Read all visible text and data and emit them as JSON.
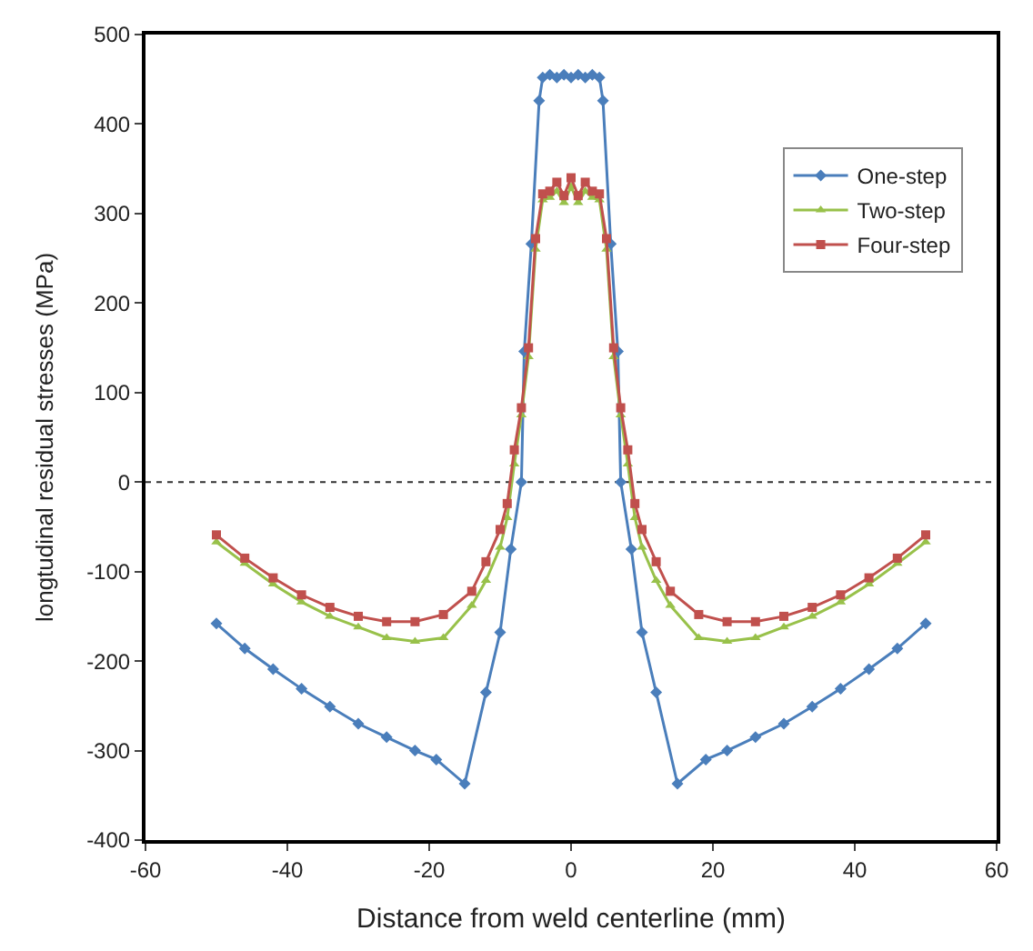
{
  "chart_data": {
    "type": "line",
    "xlabel": "Distance from weld centerline (mm)",
    "ylabel": "longtudinal residual stresses (MPa)",
    "xlim": [
      -60,
      60
    ],
    "xticks": [
      -60,
      -40,
      -20,
      0,
      20,
      40,
      60
    ],
    "ylim": [
      -400,
      500
    ],
    "yticks": [
      -400,
      -300,
      -200,
      -100,
      0,
      100,
      200,
      300,
      400,
      500
    ],
    "grid": false,
    "legend": "top right",
    "ref_lines": [
      {
        "axis": "y",
        "value": 0,
        "line_style": "dotted",
        "color": "#333333"
      }
    ],
    "series": [
      {
        "name": "One-step",
        "color": "#4a7ebb",
        "marker": "diamond",
        "x": [
          -50,
          -46,
          -42,
          -38,
          -34,
          -30,
          -26,
          -22,
          -19,
          -15,
          -12,
          -10,
          -8.5,
          -7,
          -6.6,
          -5.6,
          -4.5,
          -4,
          -3,
          -2,
          -1,
          0,
          1,
          2,
          3,
          4,
          4.5,
          5.6,
          6.6,
          7,
          8.5,
          10,
          12,
          15,
          19,
          22,
          26,
          30,
          34,
          38,
          42,
          46,
          50
        ],
        "values": [
          -158,
          -186,
          -209,
          -231,
          -251,
          -270,
          -285,
          -300,
          -310,
          -337,
          -235,
          -168,
          -75,
          0,
          146,
          266,
          426,
          452,
          455,
          452,
          455,
          452,
          455,
          452,
          455,
          452,
          426,
          266,
          146,
          0,
          -75,
          -168,
          -235,
          -337,
          -310,
          -300,
          -285,
          -270,
          -251,
          -231,
          -209,
          -186,
          -158
        ]
      },
      {
        "name": "Two-step",
        "color": "#98c14a",
        "marker": "triangle",
        "x": [
          -50,
          -46,
          -42,
          -38,
          -34,
          -30,
          -26,
          -22,
          -18,
          -14,
          -12,
          -10,
          -9,
          -8,
          -7,
          -6,
          -5,
          -4,
          -3,
          -2,
          -1,
          0,
          1,
          2,
          3,
          4,
          5,
          6,
          7,
          8,
          9,
          10,
          12,
          14,
          18,
          22,
          26,
          30,
          34,
          38,
          42,
          46,
          50
        ],
        "values": [
          -67,
          -91,
          -114,
          -134,
          -150,
          -162,
          -174,
          -178,
          -174,
          -138,
          -110,
          -73,
          -40,
          20,
          75,
          140,
          260,
          315,
          318,
          325,
          312,
          330,
          312,
          325,
          318,
          315,
          260,
          140,
          75,
          20,
          -40,
          -73,
          -110,
          -138,
          -174,
          -178,
          -174,
          -162,
          -150,
          -134,
          -114,
          -91,
          -67
        ]
      },
      {
        "name": "Four-step",
        "color": "#c0504d",
        "marker": "square",
        "x": [
          -50,
          -46,
          -42,
          -38,
          -34,
          -30,
          -26,
          -22,
          -18,
          -14,
          -12,
          -10,
          -9,
          -8,
          -7,
          -6,
          -5,
          -4,
          -3,
          -2,
          -1,
          0,
          1,
          2,
          3,
          4,
          5,
          6,
          7,
          8,
          9,
          10,
          12,
          14,
          18,
          22,
          26,
          30,
          34,
          38,
          42,
          46,
          50
        ],
        "values": [
          -59,
          -85,
          -107,
          -126,
          -140,
          -150,
          -156,
          -156,
          -148,
          -122,
          -89,
          -53,
          -24,
          36,
          83,
          150,
          272,
          322,
          325,
          335,
          320,
          340,
          320,
          335,
          325,
          322,
          272,
          150,
          83,
          36,
          -24,
          -53,
          -89,
          -122,
          -148,
          -156,
          -156,
          -150,
          -140,
          -126,
          -107,
          -85,
          -59
        ]
      }
    ]
  }
}
